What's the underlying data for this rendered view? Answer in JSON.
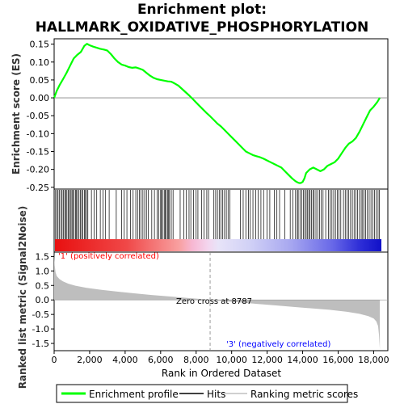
{
  "chart_data": {
    "type": "line",
    "title_line1": "Enrichment plot:",
    "title_line2": "HALLMARK_OXIDATIVE_PHOSPHORYLATION",
    "ylabel_top": "Enrichment score (ES)",
    "ylabel_bottom": "Ranked list metric (Signal2Noise)",
    "xlabel": "Rank in Ordered Dataset",
    "xlim": [
      0,
      18800
    ],
    "xticks": [
      0,
      2000,
      4000,
      6000,
      8000,
      10000,
      12000,
      14000,
      16000,
      18000
    ],
    "xtick_labels": [
      "0",
      "2,000",
      "4,000",
      "6,000",
      "8,000",
      "10,000",
      "12,000",
      "14,000",
      "16,000",
      "18,000"
    ],
    "es_ylim": [
      -0.255,
      0.165
    ],
    "es_yticks": [
      0.15,
      0.1,
      0.05,
      0.0,
      -0.05,
      -0.1,
      -0.15,
      -0.2,
      -0.25
    ],
    "es_ytick_labels": [
      "0.15",
      "0.10",
      "0.05",
      "0.00",
      "-0.05",
      "-0.10",
      "-0.15",
      "-0.20",
      "-0.25"
    ],
    "metric_ylim": [
      -1.75,
      1.65
    ],
    "metric_yticks": [
      1.5,
      1.0,
      0.5,
      0.0,
      -0.5,
      -1.0,
      -1.5
    ],
    "metric_ytick_labels": [
      "1.5",
      "1.0",
      "0.5",
      "0.0",
      "-0.5",
      "-1.0",
      "-1.5"
    ],
    "enrichment_profile": {
      "x": [
        0,
        150,
        300,
        500,
        700,
        900,
        1100,
        1300,
        1500,
        1700,
        1850,
        2000,
        2200,
        2400,
        2600,
        2800,
        3000,
        3200,
        3400,
        3600,
        3800,
        4000,
        4200,
        4400,
        4600,
        4800,
        5000,
        5200,
        5400,
        5600,
        5800,
        6000,
        6200,
        6400,
        6600,
        6800,
        7000,
        7200,
        7400,
        7600,
        7800,
        8000,
        8200,
        8400,
        8600,
        8800,
        9000,
        9200,
        9400,
        9600,
        9800,
        10000,
        10200,
        10400,
        10600,
        10800,
        11000,
        11200,
        11400,
        11600,
        11800,
        12000,
        12200,
        12400,
        12600,
        12800,
        13000,
        13200,
        13400,
        13600,
        13700,
        13800,
        13900,
        14000,
        14100,
        14200,
        14400,
        14600,
        14800,
        15000,
        15200,
        15400,
        15600,
        15800,
        16000,
        16200,
        16400,
        16600,
        16800,
        17000,
        17200,
        17400,
        17600,
        17800,
        18000,
        18200,
        18350
      ],
      "es": [
        0.0,
        0.02,
        0.035,
        0.052,
        0.07,
        0.09,
        0.11,
        0.12,
        0.128,
        0.145,
        0.151,
        0.147,
        0.143,
        0.14,
        0.137,
        0.135,
        0.132,
        0.122,
        0.11,
        0.1,
        0.093,
        0.09,
        0.086,
        0.084,
        0.085,
        0.082,
        0.078,
        0.07,
        0.062,
        0.056,
        0.052,
        0.05,
        0.048,
        0.046,
        0.045,
        0.04,
        0.034,
        0.025,
        0.016,
        0.007,
        -0.003,
        -0.013,
        -0.023,
        -0.033,
        -0.043,
        -0.052,
        -0.062,
        -0.072,
        -0.08,
        -0.09,
        -0.1,
        -0.11,
        -0.12,
        -0.13,
        -0.14,
        -0.15,
        -0.155,
        -0.16,
        -0.163,
        -0.166,
        -0.17,
        -0.175,
        -0.18,
        -0.185,
        -0.19,
        -0.195,
        -0.205,
        -0.215,
        -0.225,
        -0.233,
        -0.236,
        -0.238,
        -0.238,
        -0.235,
        -0.225,
        -0.21,
        -0.2,
        -0.195,
        -0.2,
        -0.205,
        -0.2,
        -0.19,
        -0.185,
        -0.18,
        -0.17,
        -0.155,
        -0.14,
        -0.128,
        -0.122,
        -0.112,
        -0.095,
        -0.075,
        -0.055,
        -0.035,
        -0.025,
        -0.012,
        0.0
      ]
    },
    "hits": [
      80,
      150,
      220,
      300,
      380,
      450,
      520,
      600,
      650,
      720,
      800,
      860,
      920,
      1000,
      1050,
      1120,
      1200,
      1260,
      1320,
      1400,
      1480,
      1550,
      1620,
      1700,
      1760,
      1830,
      1900,
      2100,
      2250,
      2400,
      2600,
      2750,
      2900,
      3100,
      3500,
      3800,
      3950,
      4100,
      4300,
      4450,
      4600,
      4700,
      4800,
      4900,
      5000,
      5100,
      5200,
      5300,
      5500,
      5650,
      5800,
      5900,
      6000,
      6050,
      6100,
      6200,
      6250,
      6300,
      6400,
      6450,
      6500,
      6600,
      6700,
      7100,
      7300,
      7450,
      7600,
      7700,
      7850,
      8000,
      8100,
      8300,
      8450,
      8600,
      8700,
      9000,
      9100,
      9200,
      9300,
      9400,
      9500,
      9600,
      9700,
      9800,
      9900,
      10500,
      10650,
      10800,
      10950,
      11050,
      11200,
      11350,
      11500,
      11650,
      11800,
      12000,
      12150,
      12400,
      12550,
      12700,
      13000,
      13300,
      13450,
      13600,
      13700,
      13750,
      13850,
      13950,
      14050,
      14120,
      14200,
      14280,
      14350,
      14420,
      14500,
      14580,
      14650,
      14750,
      14850,
      14950,
      15050,
      15150,
      15300,
      15450,
      15550,
      15650,
      15750,
      15850,
      15950,
      16050,
      16150,
      16300,
      16400,
      16500,
      16600,
      16700,
      16800,
      16900,
      17000,
      17100,
      17200,
      17300,
      17380,
      17450,
      17550,
      17650,
      17750,
      17850,
      17950,
      18050,
      18150,
      18250,
      18320
    ],
    "ranked_metric": {
      "x": [
        0,
        30,
        80,
        150,
        300,
        500,
        800,
        1200,
        1800,
        2500,
        3500,
        4500,
        5500,
        6500,
        7500,
        8300,
        8787,
        9500,
        10500,
        11500,
        12500,
        13500,
        14500,
        15500,
        16500,
        17200,
        17700,
        18000,
        18150,
        18250,
        18300,
        18350
      ],
      "value": [
        1.6,
        1.2,
        0.95,
        0.82,
        0.72,
        0.64,
        0.56,
        0.49,
        0.42,
        0.36,
        0.29,
        0.23,
        0.17,
        0.12,
        0.07,
        0.03,
        0.0,
        -0.04,
        -0.09,
        -0.14,
        -0.19,
        -0.24,
        -0.29,
        -0.34,
        -0.41,
        -0.48,
        -0.56,
        -0.64,
        -0.74,
        -0.9,
        -1.2,
        -1.7
      ]
    },
    "zero_cross_label": "Zero cross at 8787",
    "zero_cross": 8787,
    "pos_label": "'1' (positively correlated)",
    "neg_label": "'3' (negatively correlated)",
    "legend": [
      {
        "label": "Enrichment profile",
        "color": "#00ff00"
      },
      {
        "label": "Hits",
        "color": "#000000"
      },
      {
        "label": "Ranking metric scores",
        "color": "#c0c0c0"
      }
    ],
    "colors": {
      "profile": "#00ff00",
      "hit": "#000000",
      "metric_fill": "#bebebe",
      "pos_text": "#ff0000",
      "neg_text": "#0000ff",
      "zero_line": "#808080"
    }
  }
}
